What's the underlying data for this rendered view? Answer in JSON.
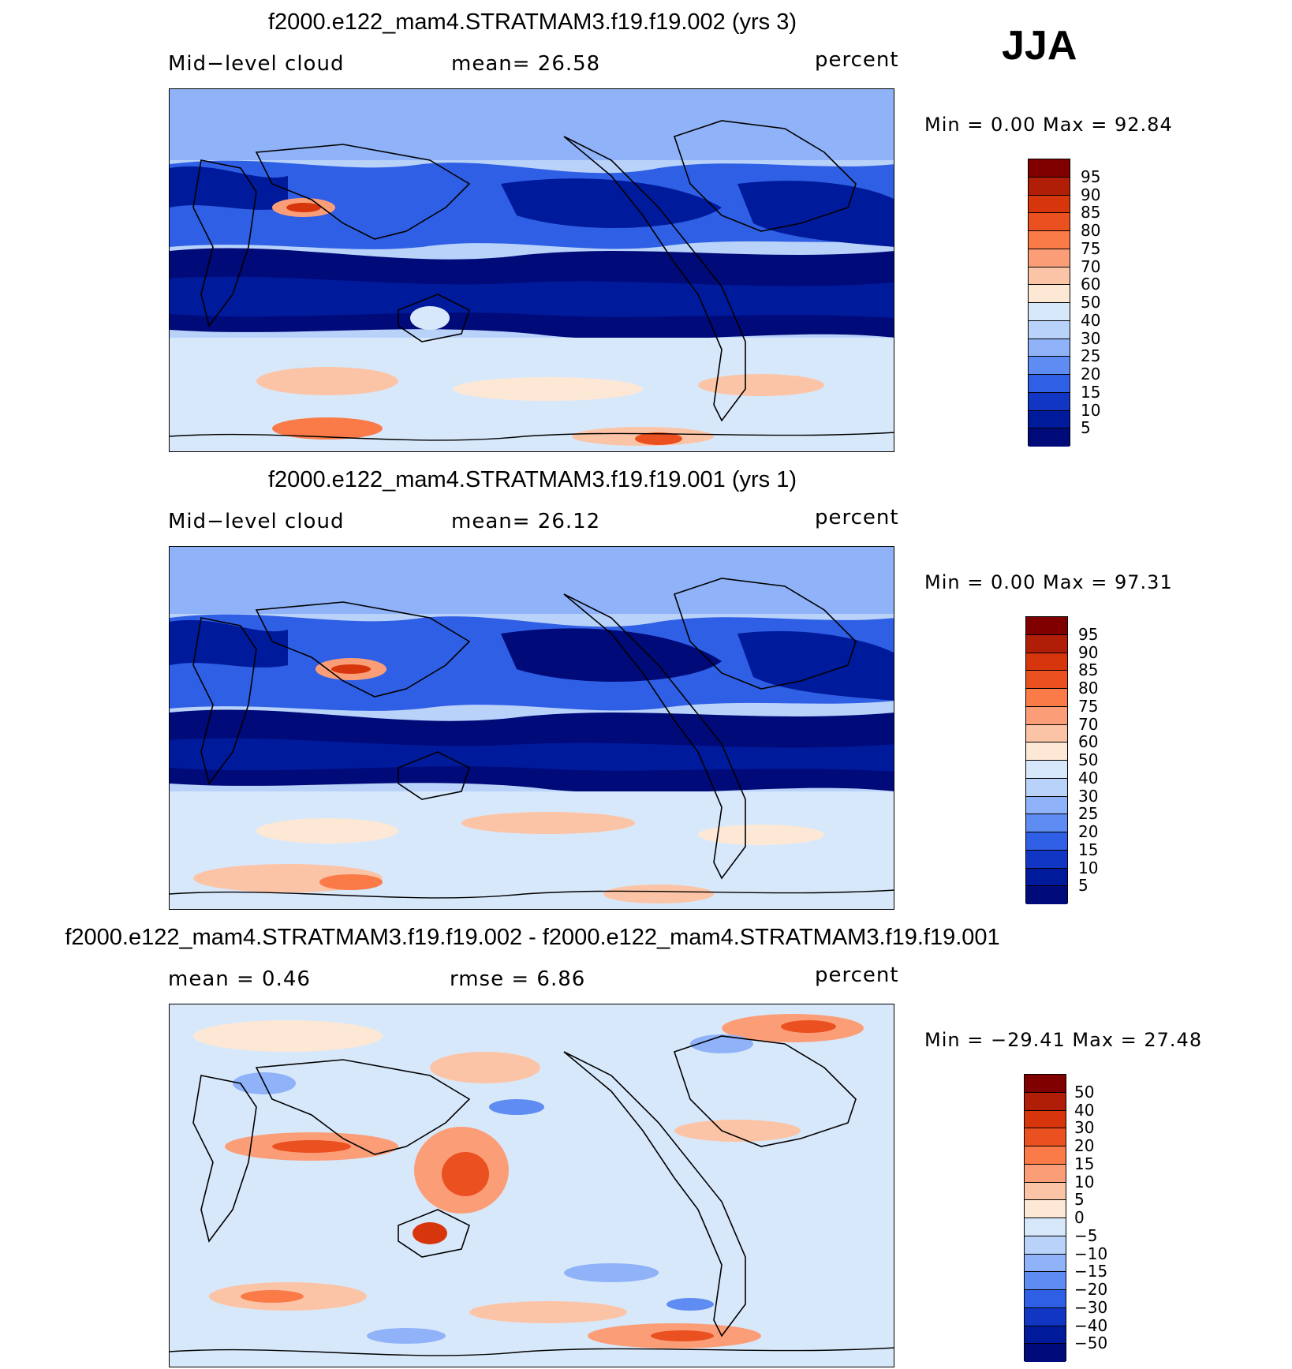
{
  "season": "JJA",
  "panels": [
    {
      "title": "f2000.e122_mam4.STRATMAM3.f19.f19.002 (yrs 3)",
      "left_label": "Mid−level cloud",
      "center_label": "mean=   26.58",
      "units": "percent",
      "minmax": "Min =     0.00  Max =    92.84",
      "levels": [
        "95",
        "90",
        "85",
        "80",
        "75",
        "70",
        "60",
        "50",
        "40",
        "30",
        "25",
        "20",
        "15",
        "10",
        "5"
      ]
    },
    {
      "title": "f2000.e122_mam4.STRATMAM3.f19.f19.001 (yrs 1)",
      "left_label": "Mid−level cloud",
      "center_label": "mean=   26.12",
      "units": "percent",
      "minmax": "Min =     0.00  Max =    97.31",
      "levels": [
        "95",
        "90",
        "85",
        "80",
        "75",
        "70",
        "60",
        "50",
        "40",
        "30",
        "25",
        "20",
        "15",
        "10",
        "5"
      ]
    },
    {
      "title": "f2000.e122_mam4.STRATMAM3.f19.f19.002 - f2000.e122_mam4.STRATMAM3.f19.f19.001",
      "left_label": "mean =     0.46",
      "center_label": "rmse =     6.86",
      "units": "percent",
      "minmax": "Min = −29.41  Max =    27.48",
      "levels": [
        "50",
        "40",
        "30",
        "20",
        "15",
        "10",
        "5",
        "0",
        "−5",
        "−10",
        "−15",
        "−20",
        "−30",
        "−40",
        "−50"
      ]
    }
  ],
  "colors": {
    "scale": [
      "#800000",
      "#b01e08",
      "#d7360c",
      "#eb5020",
      "#fa7a48",
      "#fb9e78",
      "#fcc4a6",
      "#fde8d6",
      "#d8e8fb",
      "#b8d2fa",
      "#8fb2f8",
      "#5e8cf2",
      "#2f5fe4",
      "#1236c4",
      "#001a9c",
      "#000a78"
    ]
  }
}
